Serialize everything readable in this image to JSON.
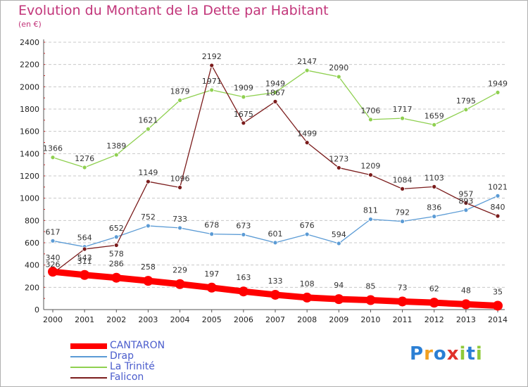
{
  "chart_data": {
    "type": "line",
    "title": "Evolution du Montant de la Dette par Habitant",
    "unit_label": "(en €)",
    "x": [
      "2000",
      "2001",
      "2002",
      "2003",
      "2004",
      "2005",
      "2006",
      "2007",
      "2008",
      "2009",
      "2010",
      "2011",
      "2012",
      "2013",
      "2014"
    ],
    "y_ticks": [
      "0",
      "200",
      "400",
      "600",
      "800",
      "1000",
      "1200",
      "1400",
      "1600",
      "1800",
      "2000",
      "2200",
      "2400"
    ],
    "ylim": [
      0,
      2400
    ],
    "grid": "horizontal dashed",
    "legend_position": "bottom-left",
    "series": [
      {
        "name": "CANTARON",
        "color": "#ff0000",
        "values": [
          340,
          311,
          286,
          258,
          229,
          197,
          163,
          133,
          108,
          94,
          85,
          73,
          62,
          48,
          35
        ]
      },
      {
        "name": "Drap",
        "color": "#5b9bd5",
        "values": [
          617,
          564,
          652,
          752,
          733,
          678,
          673,
          601,
          676,
          594,
          811,
          792,
          836,
          893,
          1021
        ]
      },
      {
        "name": "La Trinité",
        "color": "#8fd050",
        "values": [
          1366,
          1276,
          1389,
          1621,
          1879,
          1971,
          1909,
          1949,
          2147,
          2090,
          1706,
          1717,
          1659,
          1795,
          1949
        ]
      },
      {
        "name": "Falicon",
        "color": "#7b1c1c",
        "values": [
          326,
          543,
          578,
          1149,
          1096,
          2192,
          1675,
          1867,
          1499,
          1273,
          1209,
          1084,
          1103,
          957,
          840
        ]
      }
    ]
  },
  "brand": {
    "letters": [
      "P",
      "r",
      "o",
      "x",
      "i",
      "t",
      "i"
    ],
    "colors": [
      "#2b7fd4",
      "#f2a01f",
      "#2b7fd4",
      "#e0312b",
      "#8fc93a",
      "#2b7fd4",
      "#8fc93a"
    ]
  }
}
